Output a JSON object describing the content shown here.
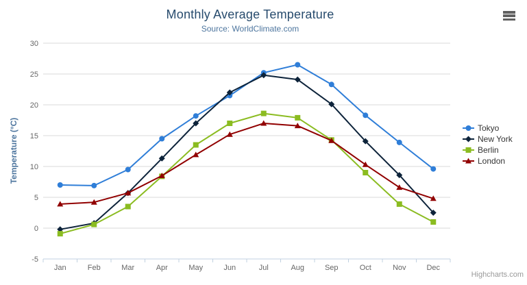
{
  "credits": {
    "text": "Highcharts.com"
  },
  "export_menu": {
    "icon": "hamburger-icon"
  },
  "style": {
    "title_color": "#274b6d",
    "subtitle_color": "#4d759e",
    "axis_title_color": "#4d759e",
    "axis_label_color": "#666666",
    "axis_line_color": "#c0d0e0",
    "grid_color": "#d8d8d8",
    "legend_text_color": "#333333",
    "credits_color": "#999999",
    "background": "#ffffff"
  },
  "chart_data": {
    "type": "line",
    "title": "Monthly Average Temperature",
    "subtitle": "Source: WorldClimate.com",
    "xlabel": "",
    "ylabel": "Temperature (°C)",
    "ylim": [
      -5,
      30
    ],
    "ytick_step": 5,
    "yticks": [
      -5,
      0,
      5,
      10,
      15,
      20,
      25,
      30
    ],
    "grid": true,
    "legend_position": "right",
    "categories": [
      "Jan",
      "Feb",
      "Mar",
      "Apr",
      "May",
      "Jun",
      "Jul",
      "Aug",
      "Sep",
      "Oct",
      "Nov",
      "Dec"
    ],
    "series": [
      {
        "name": "Tokyo",
        "color": "#2f7ed8",
        "marker": "circle",
        "values": [
          7.0,
          6.9,
          9.5,
          14.5,
          18.2,
          21.5,
          25.2,
          26.5,
          23.3,
          18.3,
          13.9,
          9.6
        ]
      },
      {
        "name": "New York",
        "color": "#0d233a",
        "marker": "diamond",
        "values": [
          -0.2,
          0.8,
          5.7,
          11.3,
          17.0,
          22.0,
          24.8,
          24.1,
          20.1,
          14.1,
          8.6,
          2.5
        ]
      },
      {
        "name": "Berlin",
        "color": "#8bbc21",
        "marker": "square",
        "values": [
          -0.9,
          0.6,
          3.5,
          8.4,
          13.5,
          17.0,
          18.6,
          17.9,
          14.3,
          9.0,
          3.9,
          1.0
        ]
      },
      {
        "name": "London",
        "color": "#910000",
        "marker": "triangle",
        "values": [
          3.9,
          4.2,
          5.7,
          8.5,
          11.9,
          15.2,
          17.0,
          16.6,
          14.2,
          10.3,
          6.6,
          4.8
        ]
      }
    ]
  }
}
